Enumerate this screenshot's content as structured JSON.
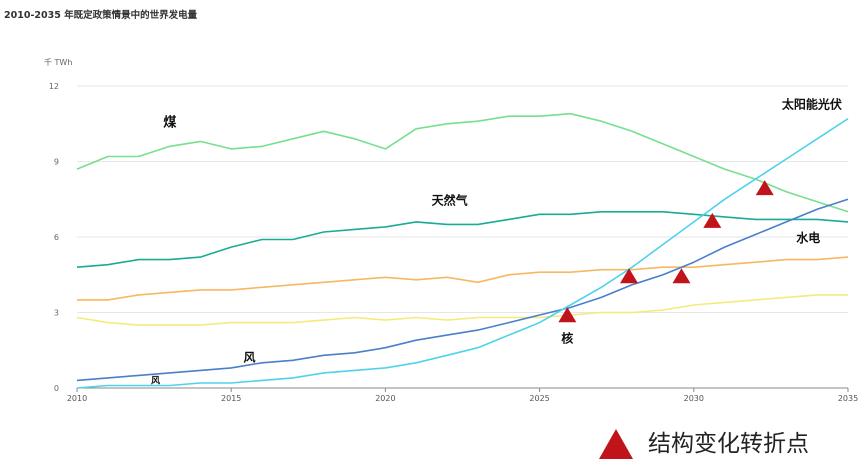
{
  "title": "2010-2035 年既定政策情景中的世界发电量",
  "chart_data": {
    "type": "line",
    "title": "2010-2035 年既定政策情景中的世界发电量",
    "ylabel": "千 TWh",
    "xlabel": "",
    "xlim": [
      2010,
      2035
    ],
    "ylim": [
      0,
      12
    ],
    "x_ticks": [
      "2010",
      "2015",
      "2020",
      "2025",
      "2030",
      "2035"
    ],
    "y_ticks": [
      "0",
      "3",
      "6",
      "9",
      "12"
    ],
    "x": [
      2010,
      2011,
      2012,
      2013,
      2014,
      2015,
      2016,
      2017,
      2018,
      2019,
      2020,
      2021,
      2022,
      2023,
      2024,
      2025,
      2026,
      2027,
      2028,
      2029,
      2030,
      2031,
      2032,
      2033,
      2034,
      2035
    ],
    "series": [
      {
        "name": "煤",
        "color": "#76e08c",
        "values": [
          8.7,
          9.2,
          9.2,
          9.6,
          9.8,
          9.5,
          9.6,
          9.9,
          10.2,
          9.9,
          9.5,
          10.3,
          10.5,
          10.6,
          10.8,
          10.8,
          10.9,
          10.6,
          10.2,
          9.7,
          9.2,
          8.7,
          8.3,
          7.8,
          7.4,
          7.0
        ]
      },
      {
        "name": "天然气",
        "color": "#1aab96",
        "values": [
          4.8,
          4.9,
          5.1,
          5.1,
          5.2,
          5.6,
          5.9,
          5.9,
          6.2,
          6.3,
          6.4,
          6.6,
          6.5,
          6.5,
          6.7,
          6.9,
          6.9,
          7.0,
          7.0,
          7.0,
          6.9,
          6.8,
          6.7,
          6.7,
          6.7,
          6.6
        ]
      },
      {
        "name": "水电",
        "color": "#f7b862",
        "values": [
          3.5,
          3.5,
          3.7,
          3.8,
          3.9,
          3.9,
          4.0,
          4.1,
          4.2,
          4.3,
          4.4,
          4.3,
          4.4,
          4.2,
          4.5,
          4.6,
          4.6,
          4.7,
          4.7,
          4.8,
          4.8,
          4.9,
          5.0,
          5.1,
          5.1,
          5.2
        ]
      },
      {
        "name": "核",
        "color": "#f6ea7c",
        "values": [
          2.8,
          2.6,
          2.5,
          2.5,
          2.5,
          2.6,
          2.6,
          2.6,
          2.7,
          2.8,
          2.7,
          2.8,
          2.7,
          2.8,
          2.8,
          2.8,
          2.9,
          3.0,
          3.0,
          3.1,
          3.3,
          3.4,
          3.5,
          3.6,
          3.7,
          3.7
        ]
      },
      {
        "name": "风",
        "color": "#4a7fcb",
        "values": [
          0.3,
          0.4,
          0.5,
          0.6,
          0.7,
          0.8,
          1.0,
          1.1,
          1.3,
          1.4,
          1.6,
          1.9,
          2.1,
          2.3,
          2.6,
          2.9,
          3.2,
          3.6,
          4.1,
          4.5,
          5.0,
          5.6,
          6.1,
          6.6,
          7.1,
          7.5
        ]
      },
      {
        "name": "太阳能光伏",
        "color": "#4fd2ec",
        "values": [
          0.0,
          0.1,
          0.1,
          0.1,
          0.2,
          0.2,
          0.3,
          0.4,
          0.6,
          0.7,
          0.8,
          1.0,
          1.3,
          1.6,
          2.1,
          2.6,
          3.3,
          4.0,
          4.8,
          5.7,
          6.6,
          7.5,
          8.3,
          9.1,
          9.9,
          10.7
        ]
      }
    ],
    "series_labels": [
      {
        "text": "煤",
        "x": 2012.8,
        "y": 10.4,
        "size": 13
      },
      {
        "text": "天然气",
        "x": 2021.5,
        "y": 7.3,
        "size": 12
      },
      {
        "text": "水电",
        "x": 2034.1,
        "y": 5.8,
        "size": 12
      },
      {
        "text": "核",
        "x": 2025.7,
        "y": 1.8,
        "size": 12
      },
      {
        "text": "风",
        "x": 2015.4,
        "y": 1.05,
        "size": 12
      },
      {
        "text": "风",
        "x": 2012.4,
        "y": 0.18,
        "size": 9
      },
      {
        "text": "太阳能光伏",
        "x": 2034.8,
        "y": 11.1,
        "size": 12
      }
    ],
    "turning_points": [
      {
        "x": 2025.9,
        "y": 2.85
      },
      {
        "x": 2027.9,
        "y": 4.4
      },
      {
        "x": 2029.6,
        "y": 4.4
      },
      {
        "x": 2030.6,
        "y": 6.6
      },
      {
        "x": 2032.3,
        "y": 7.9
      }
    ],
    "marker_color": "#c0141a",
    "grid": "horizontal",
    "legend": {
      "position": "bottom-right",
      "label": "结构变化转折点"
    }
  }
}
